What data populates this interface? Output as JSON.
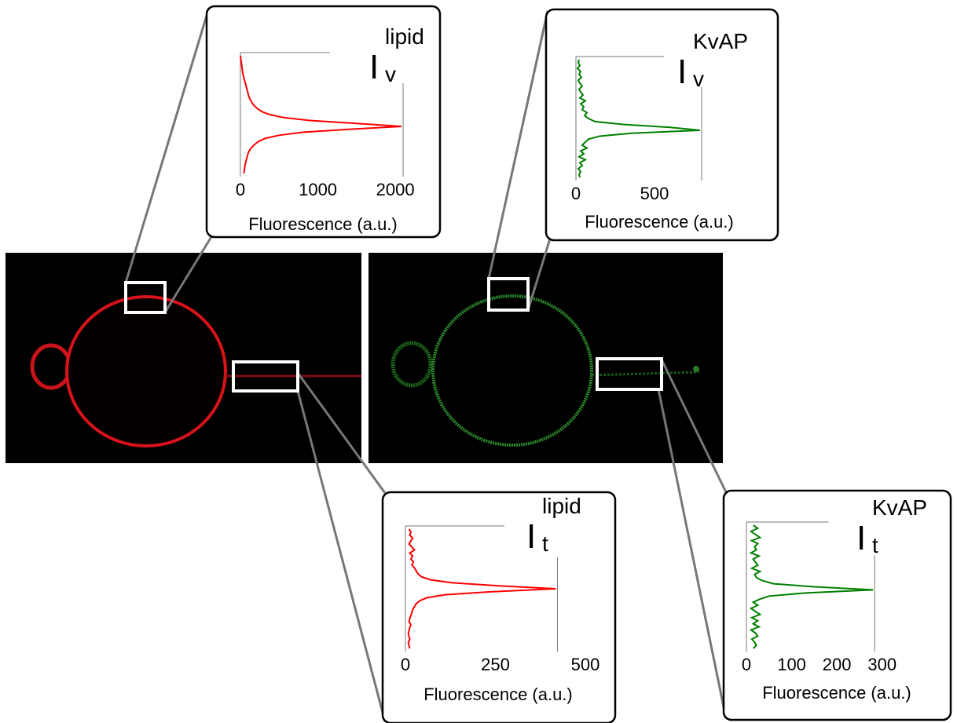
{
  "chart_data": [
    {
      "type": "profile",
      "title": {
        "main": "I",
        "sup": "lipid",
        "sub": "v"
      },
      "xlabel": "Fluorescence (a.u.)",
      "color": "#ff0000",
      "xlim": [
        0,
        2100
      ],
      "xticks": [
        0,
        1000,
        2000
      ],
      "values": [
        0,
        5,
        10,
        15,
        20,
        25,
        30,
        40,
        50,
        60,
        70,
        80,
        90,
        100,
        110,
        130,
        150,
        180,
        220,
        280,
        380,
        560,
        900,
        1500,
        2080,
        1400,
        800,
        500,
        330,
        240,
        190,
        150,
        120,
        100,
        90,
        80,
        70,
        60,
        55,
        50,
        45
      ]
    },
    {
      "type": "profile",
      "title": {
        "main": "I",
        "sup": "KvAP",
        "sub": "v"
      },
      "xlabel": "Fluorescence (a.u.)",
      "color": "#008000",
      "xlim": [
        0,
        1020
      ],
      "xticks": [
        0,
        500
      ],
      "values": [
        20,
        15,
        25,
        10,
        30,
        20,
        35,
        15,
        25,
        40,
        20,
        30,
        45,
        25,
        60,
        30,
        50,
        40,
        70,
        55,
        80,
        120,
        300,
        600,
        790,
        350,
        150,
        80,
        60,
        40,
        70,
        30,
        50,
        20,
        60,
        25,
        40,
        15,
        30,
        20,
        25
      ]
    },
    {
      "type": "profile",
      "title": {
        "main": "I",
        "sup": "lipid",
        "sub": "t"
      },
      "xlabel": "Fluorescence (a.u.)",
      "color": "#ff0000",
      "xlim": [
        0,
        500
      ],
      "xticks": [
        0,
        250,
        500
      ],
      "values": [
        10,
        15,
        12,
        20,
        15,
        10,
        18,
        25,
        12,
        20,
        15,
        22,
        18,
        25,
        30,
        35,
        45,
        70,
        130,
        260,
        418,
        240,
        110,
        60,
        40,
        30,
        25,
        20,
        18,
        15,
        12,
        10,
        15,
        12,
        10,
        8,
        10,
        12,
        8,
        10,
        12
      ]
    },
    {
      "type": "profile",
      "title": {
        "main": "I",
        "sup": "KvAP",
        "sub": "t"
      },
      "xlabel": "Fluorescence (a.u.)",
      "color": "#008000",
      "xlim": [
        0,
        330
      ],
      "xticks": [
        0,
        100,
        200,
        300
      ],
      "values": [
        15,
        25,
        10,
        20,
        30,
        12,
        25,
        18,
        22,
        10,
        28,
        15,
        20,
        25,
        12,
        30,
        18,
        22,
        35,
        60,
        150,
        280,
        130,
        50,
        30,
        15,
        25,
        10,
        20,
        30,
        12,
        25,
        15,
        28,
        10,
        20,
        25,
        12,
        18,
        22,
        15
      ]
    }
  ]
}
